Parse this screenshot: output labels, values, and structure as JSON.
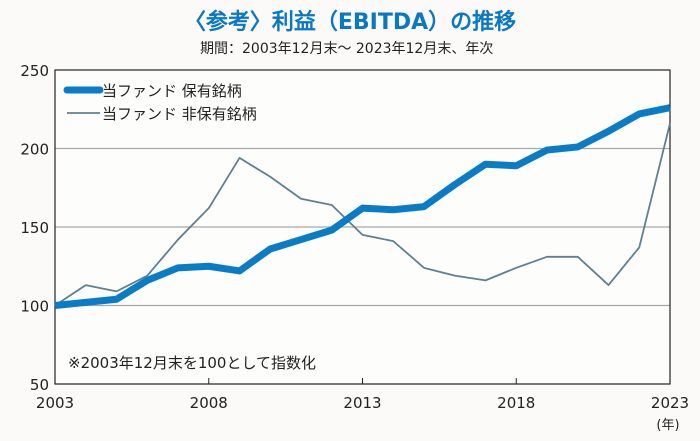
{
  "chart_data": {
    "type": "line",
    "title": "〈参考〉利益（EBITDA）の推移",
    "subtitle": "期間：2003年12月末〜 2023年12月末、年次",
    "note": "※2003年12月末を100として指数化",
    "xlabel": "(年)",
    "x": [
      2003,
      2004,
      2005,
      2006,
      2007,
      2008,
      2009,
      2010,
      2011,
      2012,
      2013,
      2014,
      2015,
      2016,
      2017,
      2018,
      2019,
      2020,
      2021,
      2022,
      2023
    ],
    "xticks": [
      2003,
      2008,
      2013,
      2018,
      2023
    ],
    "yticks": [
      50,
      100,
      150,
      200,
      250
    ],
    "ylim": [
      50,
      250
    ],
    "grid": "horizontal",
    "legend": "top-left",
    "series": [
      {
        "name": "当ファンド 保有銘柄",
        "color": "#0a7cc6",
        "values": [
          100,
          102,
          104,
          116,
          124,
          125,
          122,
          136,
          142,
          148,
          162,
          161,
          163,
          177,
          190,
          189,
          199,
          201,
          211,
          222,
          226
        ]
      },
      {
        "name": "当ファンド 非保有銘柄",
        "color": "#5e8092",
        "values": [
          100,
          113,
          109,
          119,
          142,
          162,
          194,
          182,
          168,
          164,
          145,
          141,
          124,
          119,
          116,
          124,
          131,
          131,
          113,
          137,
          216
        ]
      }
    ]
  }
}
